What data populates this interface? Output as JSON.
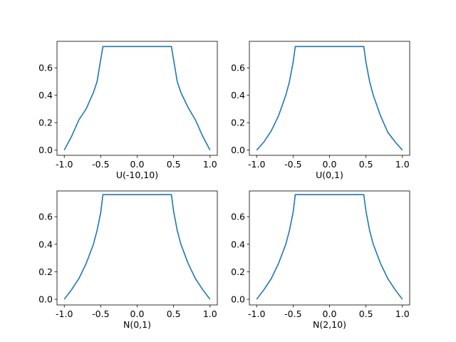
{
  "chart_data": [
    {
      "type": "line",
      "xlabel": "U(-10,10)",
      "color": "#1f77b4",
      "x": [
        -1,
        -0.9,
        -0.8,
        -0.7,
        -0.6,
        -0.55,
        -0.5,
        -0.47,
        0,
        0.47,
        0.5,
        0.55,
        0.6,
        0.7,
        0.8,
        0.9,
        1
      ],
      "values": [
        0,
        0.1,
        0.22,
        0.3,
        0.42,
        0.5,
        0.66,
        0.755,
        0.755,
        0.755,
        0.66,
        0.5,
        0.42,
        0.31,
        0.22,
        0.1,
        0
      ],
      "xlim": [
        -1.1,
        1.1
      ],
      "ylim": [
        -0.038,
        0.793
      ],
      "xticks": [
        {
          "value": -1,
          "label": "-1.0"
        },
        {
          "value": -0.5,
          "label": "-0.5"
        },
        {
          "value": 0,
          "label": "0.0"
        },
        {
          "value": 0.5,
          "label": "0.5"
        },
        {
          "value": 1,
          "label": "1.0"
        }
      ],
      "yticks": [
        {
          "value": 0,
          "label": "0.0"
        },
        {
          "value": 0.2,
          "label": "0.2"
        },
        {
          "value": 0.4,
          "label": "0.4"
        },
        {
          "value": 0.6,
          "label": "0.6"
        }
      ]
    },
    {
      "type": "line",
      "xlabel": "U(0,1)",
      "color": "#1f77b4",
      "x": [
        -1,
        -0.9,
        -0.8,
        -0.7,
        -0.6,
        -0.55,
        -0.5,
        -0.47,
        0,
        0.47,
        0.5,
        0.55,
        0.6,
        0.7,
        0.8,
        0.9,
        1
      ],
      "values": [
        0,
        0.06,
        0.14,
        0.25,
        0.4,
        0.5,
        0.64,
        0.755,
        0.755,
        0.755,
        0.64,
        0.5,
        0.4,
        0.25,
        0.13,
        0.06,
        0
      ],
      "xlim": [
        -1.1,
        1.1
      ],
      "ylim": [
        -0.038,
        0.793
      ],
      "xticks": [
        {
          "value": -1,
          "label": "-1.0"
        },
        {
          "value": -0.5,
          "label": "-0.5"
        },
        {
          "value": 0,
          "label": "0.0"
        },
        {
          "value": 0.5,
          "label": "0.5"
        },
        {
          "value": 1,
          "label": "1.0"
        }
      ],
      "yticks": [
        {
          "value": 0,
          "label": "0.0"
        },
        {
          "value": 0.2,
          "label": "0.2"
        },
        {
          "value": 0.4,
          "label": "0.4"
        },
        {
          "value": 0.6,
          "label": "0.6"
        }
      ]
    },
    {
      "type": "line",
      "xlabel": "N(0,1)",
      "color": "#1f77b4",
      "x": [
        -1,
        -0.9,
        -0.8,
        -0.7,
        -0.6,
        -0.55,
        -0.5,
        -0.47,
        0,
        0.47,
        0.5,
        0.55,
        0.6,
        0.7,
        0.8,
        0.9,
        1
      ],
      "values": [
        0,
        0.07,
        0.15,
        0.26,
        0.4,
        0.5,
        0.63,
        0.76,
        0.76,
        0.76,
        0.64,
        0.5,
        0.4,
        0.26,
        0.15,
        0.07,
        0
      ],
      "xlim": [
        -1.1,
        1.1
      ],
      "ylim": [
        -0.041,
        0.787
      ],
      "xticks": [
        {
          "value": -1,
          "label": "-1.0"
        },
        {
          "value": -0.5,
          "label": "-0.5"
        },
        {
          "value": 0,
          "label": "0.0"
        },
        {
          "value": 0.5,
          "label": "0.5"
        },
        {
          "value": 1,
          "label": "1.0"
        }
      ],
      "yticks": [
        {
          "value": 0,
          "label": "0.0"
        },
        {
          "value": 0.2,
          "label": "0.2"
        },
        {
          "value": 0.4,
          "label": "0.4"
        },
        {
          "value": 0.6,
          "label": "0.6"
        }
      ]
    },
    {
      "type": "line",
      "xlabel": "N(2,10)",
      "color": "#1f77b4",
      "x": [
        -1,
        -0.9,
        -0.8,
        -0.7,
        -0.6,
        -0.55,
        -0.5,
        -0.47,
        0,
        0.47,
        0.5,
        0.55,
        0.6,
        0.7,
        0.8,
        0.9,
        1
      ],
      "values": [
        0,
        0.07,
        0.15,
        0.26,
        0.4,
        0.5,
        0.63,
        0.76,
        0.76,
        0.76,
        0.64,
        0.5,
        0.4,
        0.26,
        0.15,
        0.07,
        0
      ],
      "xlim": [
        -1.1,
        1.1
      ],
      "ylim": [
        -0.041,
        0.787
      ],
      "xticks": [
        {
          "value": -1,
          "label": "-1.0"
        },
        {
          "value": -0.5,
          "label": "-0.5"
        },
        {
          "value": 0,
          "label": "0.0"
        },
        {
          "value": 0.5,
          "label": "0.5"
        },
        {
          "value": 1,
          "label": "1.0"
        }
      ],
      "yticks": [
        {
          "value": 0,
          "label": "0.0"
        },
        {
          "value": 0.2,
          "label": "0.2"
        },
        {
          "value": 0.4,
          "label": "0.4"
        },
        {
          "value": 0.6,
          "label": "0.6"
        }
      ]
    }
  ]
}
